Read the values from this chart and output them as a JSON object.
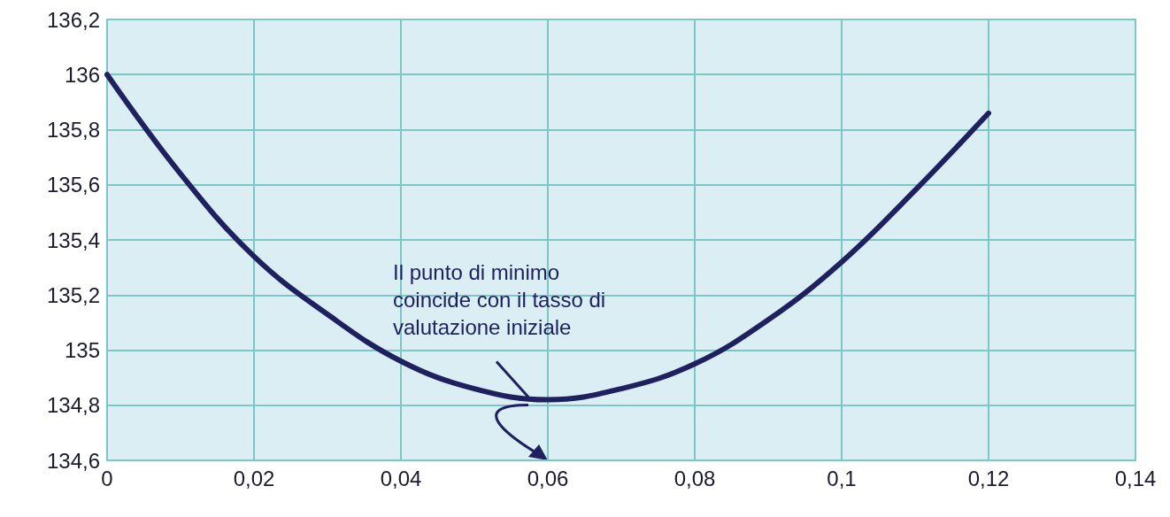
{
  "chart_data": {
    "type": "line",
    "x": [
      0,
      0.01,
      0.02,
      0.03,
      0.04,
      0.05,
      0.06,
      0.07,
      0.08,
      0.09,
      0.1,
      0.11,
      0.12
    ],
    "series": [
      {
        "color": "#1f2060",
        "values": [
          136,
          135.64,
          135.34,
          135.13,
          134.96,
          134.86,
          134.82,
          134.86,
          134.95,
          135.11,
          135.32,
          135.58,
          135.86
        ]
      }
    ],
    "xlim": [
      0,
      0.14
    ],
    "xticks": [
      0,
      {
        "value": 0.02,
        "label": "0,02"
      },
      {
        "value": 0.04,
        "label": "0,04"
      },
      {
        "value": 0.06,
        "label": "0,06"
      },
      {
        "value": 0.08,
        "label": "0,08"
      },
      {
        "value": 0.1,
        "label": "0,1"
      },
      {
        "value": 0.12,
        "label": "0,12"
      },
      {
        "value": 0.14,
        "label": "0,14"
      }
    ],
    "ylim": [
      134.6,
      136.2
    ],
    "yticks": [
      {
        "value": 134.6,
        "label": "134,6"
      },
      {
        "value": 134.8,
        "label": "134,8"
      },
      135,
      {
        "value": 135.2,
        "label": "135,2"
      },
      {
        "value": 135.4,
        "label": "135,4"
      },
      {
        "value": 135.6,
        "label": "135,6"
      },
      {
        "value": 135.8,
        "label": "135,8"
      },
      136,
      {
        "value": 136.2,
        "label": "136,2"
      }
    ],
    "grid": true,
    "marker": "none",
    "line_style": "solid",
    "annotations": [
      {
        "text": "Il punto di minimo\ncoincide con il tasso di\nvalutazione iniziale",
        "x": 0.06,
        "y": 134.82
      }
    ]
  }
}
